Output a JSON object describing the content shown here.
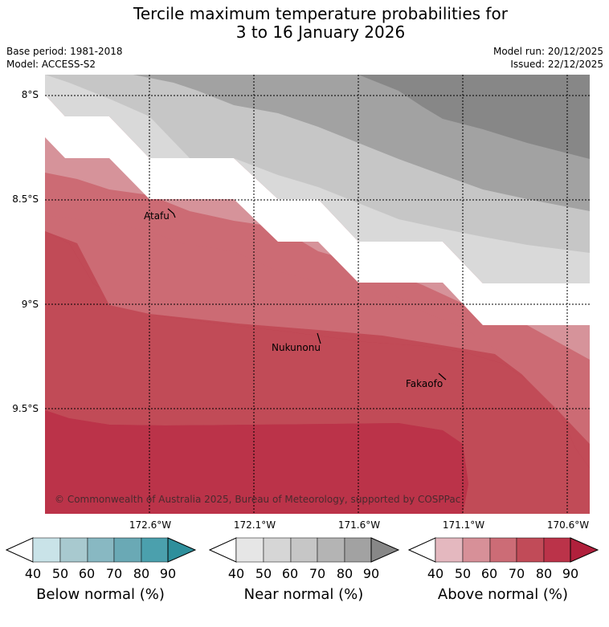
{
  "title_line1": "Tercile maximum temperature probabilities for",
  "title_line2": "3 to 16 January 2026",
  "base_period": "Base period: 1981-2018",
  "model": "Model: ACCESS-S2",
  "model_run": "Model run: 20/12/2025",
  "issued": "Issued: 22/12/2025",
  "lat_labels": [
    "8°S",
    "8.5°S",
    "9°S",
    "9.5°S"
  ],
  "lon_labels": [
    "172.6°W",
    "172.1°W",
    "171.6°W",
    "171.1°W",
    "170.6°W"
  ],
  "places": [
    "Atafu",
    "Nukunonu",
    "Fakaofo"
  ],
  "copyright": "© Commonwealth of Australia 2025, Bureau of Meteorology, supported by COSPPac",
  "colorbars": [
    {
      "title": "Below normal (%)",
      "colors": [
        "#ffffff",
        "#c9e3e8",
        "#a8c9cf",
        "#88b8c2",
        "#6aa9b5",
        "#4ba0ad",
        "#2e8f9c"
      ]
    },
    {
      "title": "Near normal (%)",
      "colors": [
        "#ffffff",
        "#e6e6e6",
        "#d6d6d6",
        "#c6c6c6",
        "#b4b4b4",
        "#a2a2a2",
        "#878787"
      ]
    },
    {
      "title": "Above normal (%)",
      "colors": [
        "#ffffff",
        "#e4b8bf",
        "#d79098",
        "#cc6c76",
        "#c14b58",
        "#bb3349",
        "#b0203c"
      ]
    }
  ],
  "tick_values": [
    "40",
    "50",
    "60",
    "70",
    "80",
    "90"
  ],
  "colors": {
    "gray_dark": "#878787",
    "gray_mid": "#a2a2a2",
    "gray_light": "#c6c6c6",
    "gray_pale": "#d9d9d9",
    "red_pale": "#d6939a",
    "red_light": "#cc6b74",
    "red_mid": "#c14b57",
    "red_dark": "#bb3349"
  }
}
